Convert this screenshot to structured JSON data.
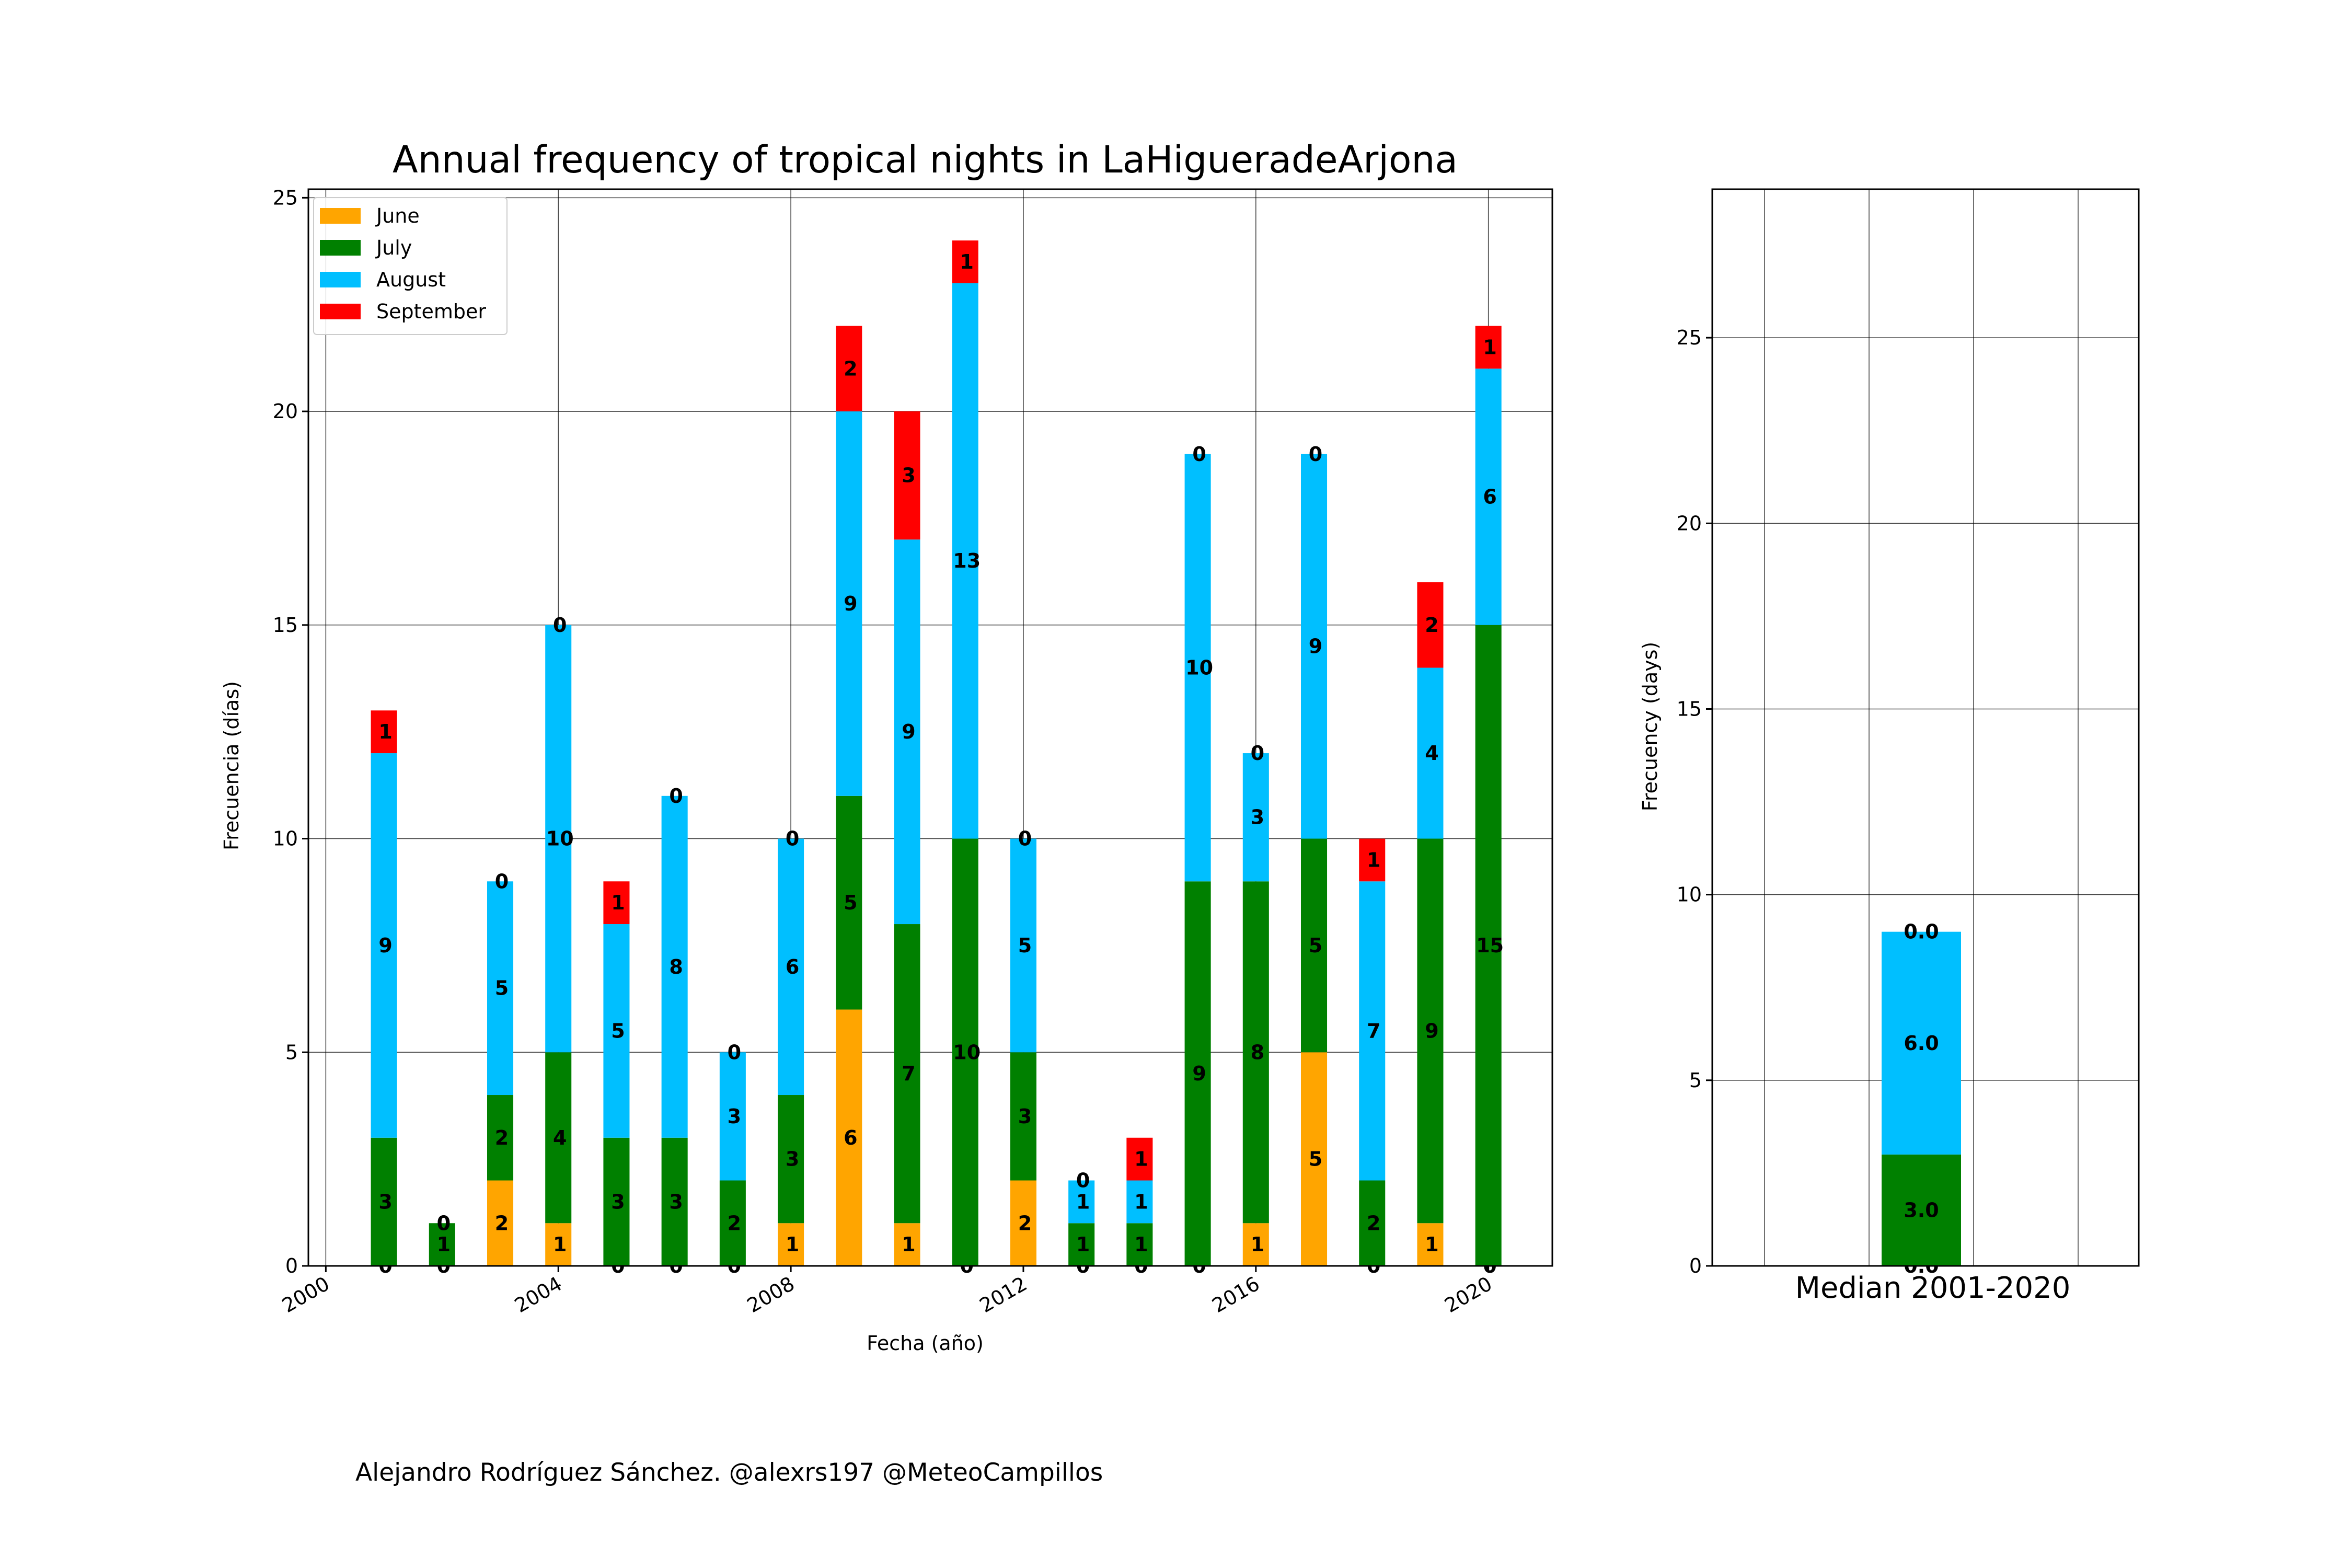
{
  "chart_data": [
    {
      "type": "bar",
      "stacked": true,
      "title": "Annual frequency of tropical nights in LaHigueradeArjona",
      "xlabel": "Fecha (año)",
      "ylabel": "Frecuencia (días)",
      "xlim": [
        1999.7,
        2021.1
      ],
      "ylim": [
        0,
        25.2
      ],
      "xticks": [
        2000,
        2004,
        2008,
        2012,
        2016,
        2020
      ],
      "yticks": [
        0,
        5,
        10,
        15,
        20,
        25
      ],
      "grid": true,
      "legend": "top-left",
      "x": [
        2001,
        2002,
        2003,
        2004,
        2005,
        2006,
        2007,
        2008,
        2009,
        2010,
        2011,
        2012,
        2013,
        2014,
        2015,
        2016,
        2017,
        2018,
        2019,
        2020
      ],
      "series": [
        {
          "name": "June",
          "color": "#ffa500",
          "values": [
            0,
            0,
            2,
            1,
            0,
            0,
            0,
            1,
            6,
            1,
            0,
            2,
            0,
            0,
            0,
            1,
            5,
            0,
            1,
            0
          ]
        },
        {
          "name": "July",
          "color": "#008000",
          "values": [
            3,
            1,
            2,
            4,
            3,
            3,
            2,
            3,
            5,
            7,
            10,
            3,
            1,
            1,
            9,
            8,
            5,
            2,
            9,
            15
          ]
        },
        {
          "name": "August",
          "color": "#00bfff",
          "values": [
            9,
            0,
            5,
            10,
            5,
            8,
            3,
            6,
            9,
            9,
            13,
            5,
            1,
            1,
            10,
            3,
            9,
            7,
            4,
            6
          ]
        },
        {
          "name": "September",
          "color": "#ff0000",
          "values": [
            1,
            0,
            0,
            0,
            1,
            0,
            0,
            0,
            2,
            3,
            1,
            0,
            0,
            1,
            0,
            0,
            0,
            1,
            2,
            1
          ]
        }
      ]
    },
    {
      "type": "bar",
      "stacked": true,
      "title": "",
      "xlabel": "Median 2001-2020",
      "ylabel": "Frecuency (days)",
      "ylim": [
        0,
        29
      ],
      "yticks": [
        0,
        5,
        10,
        15,
        20,
        25
      ],
      "grid": true,
      "categories": [
        "Median 2001-2020"
      ],
      "series": [
        {
          "name": "June",
          "color": "#ffa500",
          "values": [
            0.0
          ]
        },
        {
          "name": "July",
          "color": "#008000",
          "values": [
            3.0
          ]
        },
        {
          "name": "August",
          "color": "#00bfff",
          "values": [
            6.0
          ]
        },
        {
          "name": "September",
          "color": "#ff0000",
          "values": [
            0.0
          ]
        }
      ]
    }
  ],
  "credit": "Alejandro Rodríguez Sánchez. @alexrs197 @MeteoCampillos"
}
